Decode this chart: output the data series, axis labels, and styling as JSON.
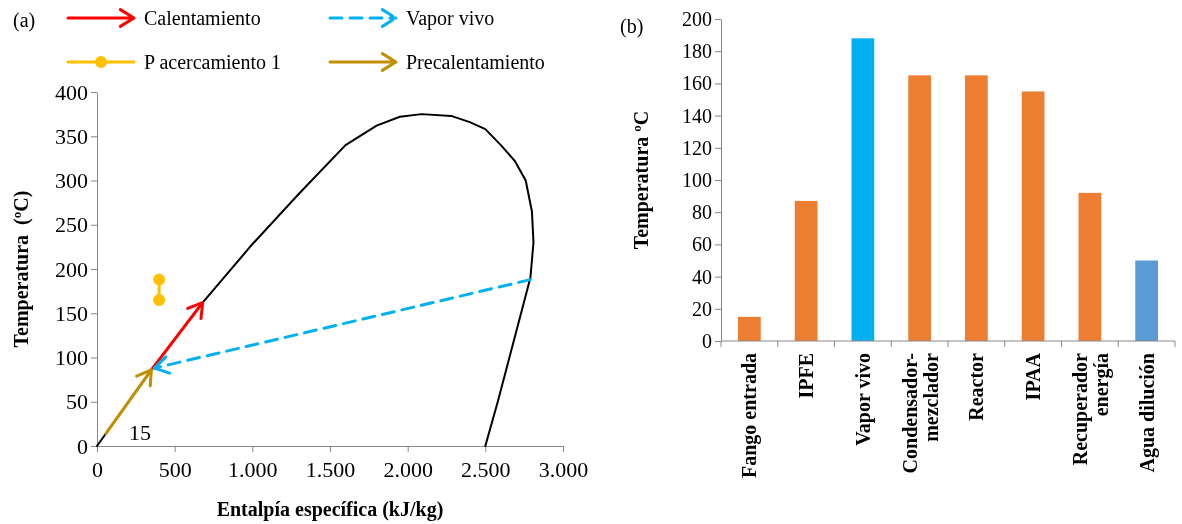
{
  "chart_data": [
    {
      "type": "line",
      "title": "(a)",
      "xlabel": "Entalpía específica (kJ/kg)",
      "ylabel": "Temperatura  (ºC)",
      "xlim": [
        0,
        3000
      ],
      "ylim": [
        0,
        400
      ],
      "xticks": [
        0,
        500,
        {
          "value": 1000,
          "label": "1.000"
        },
        {
          "value": 1500,
          "label": "1.500"
        },
        {
          "value": 2000,
          "label": "2.000"
        },
        {
          "value": 2500,
          "label": "2.500"
        },
        {
          "value": 3000,
          "label": "3.000"
        }
      ],
      "yticks": [
        0,
        50,
        100,
        150,
        200,
        250,
        300,
        350,
        400
      ],
      "legend": "top",
      "annotations": [
        "15"
      ],
      "series": [
        {
          "color": "#000000",
          "x": [
            0,
            350,
            680,
            1000,
            1300,
            1600,
            1800,
            1950,
            2090,
            2280,
            2400,
            2500,
            2600,
            2690,
            2760,
            2800,
            2810,
            2790,
            2730,
            2655,
            2580,
            2500
          ],
          "values": [
            0,
            86,
            162,
            228,
            285,
            340,
            362,
            372,
            375,
            373,
            366,
            358,
            340,
            322,
            300,
            265,
            230,
            190,
            150,
            100,
            50,
            0
          ]
        },
        {
          "name": "Calentamiento",
          "color": "#ff0000",
          "x": [
            350,
            680
          ],
          "values": [
            86,
            162
          ]
        },
        {
          "name": "Vapor vivo",
          "color": "#00b0f0",
          "line_style": "dashed",
          "x": [
            2790,
            370
          ],
          "values": [
            188,
            88
          ]
        },
        {
          "name": "P acercamiento 1",
          "color": "#ffc000",
          "marker": "circle",
          "x": [
            400,
            400
          ],
          "values": [
            188,
            165
          ]
        },
        {
          "name": "Precalentamiento",
          "color": "#bf9000",
          "x": [
            57,
            350
          ],
          "values": [
            14,
            86
          ]
        }
      ]
    },
    {
      "type": "bar",
      "title": "(b)",
      "ylabel": "Temperatura ºC",
      "ylim": [
        0,
        200
      ],
      "yticks": [
        0,
        20,
        40,
        60,
        80,
        100,
        120,
        140,
        160,
        180,
        200
      ],
      "categories": [
        "Fango entrada",
        "IPFE",
        "Vapor vivo",
        "Condensador-mezclador",
        "Reactor",
        "IPAA",
        "Recuperador energía",
        "Agua dilución"
      ],
      "values": [
        15,
        87,
        188,
        165,
        165,
        155,
        92,
        50
      ],
      "colors": [
        "#ed7d31",
        "#ed7d31",
        "#00b0f0",
        "#ed7d31",
        "#ed7d31",
        "#ed7d31",
        "#ed7d31",
        "#5b9bd5"
      ]
    }
  ]
}
